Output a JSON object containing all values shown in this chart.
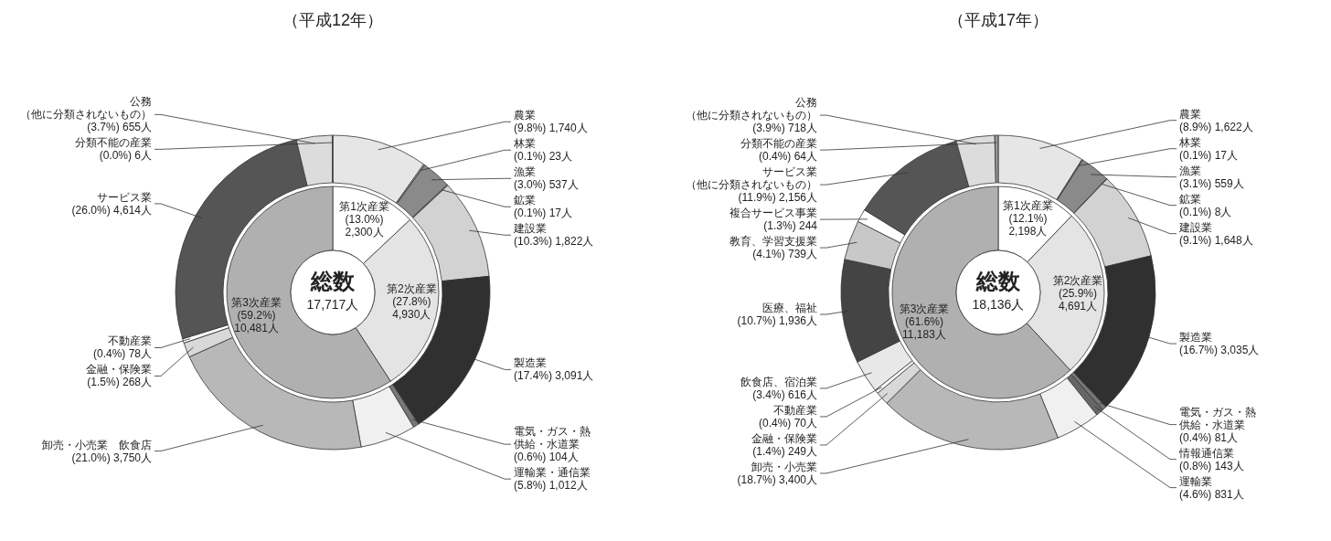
{
  "chart_data": [
    {
      "type": "donut",
      "title": "（平成12年）",
      "categories": [
        "農業",
        "林業",
        "漁業",
        "鉱業",
        "建設業",
        "製造業",
        "電気・ガス・熱供給・水道業",
        "運輸業・通信業",
        "卸売・小売業　飲食店",
        "金融・保険業",
        "不動産業",
        "サービス業",
        "公務（他に分類されないもの）",
        "分類不能の産業"
      ],
      "values": [
        1740,
        23,
        537,
        17,
        1822,
        3091,
        104,
        1012,
        3750,
        268,
        78,
        4614,
        655,
        6
      ],
      "value_labels": [
        "(9.8%) 1,740人",
        "(0.1%) 23人",
        "(3.0%) 537人",
        "(0.1%) 17人",
        "(10.3%) 1,822人",
        "(17.4%) 3,091人",
        "(0.6%) 104人",
        "(5.8%) 1,012人",
        "(21.0%) 3,750人",
        "(1.5%) 268人",
        "(0.4%) 78人",
        "(26.0%) 4,614人",
        "(3.7%) 655人",
        "(0.0%) 6人"
      ],
      "colors": [
        "#e6e6e6",
        "#d0d0d0",
        "#8a8a8a",
        "#aaaaaa",
        "#d2d2d2",
        "#303030",
        "#777777",
        "#f0f0f0",
        "#b8b8b8",
        "#d8d8d8",
        "#ffffff",
        "#555555",
        "#dcdcdc",
        "#999999"
      ]
    },
    {
      "type": "donut",
      "categories": [
        "第1次産業",
        "第2次産業",
        "第3次産業"
      ],
      "values": [
        2300,
        4930,
        10481
      ],
      "value_labels": [
        "(13.0%) 2,300人",
        "(27.8%) 4,930人",
        "(59.2%) 10,481人"
      ],
      "colors": [
        "#ffffff",
        "#e4e4e4",
        "#b0b0b0"
      ],
      "annotations": [
        "総数",
        "17,717人"
      ]
    },
    {
      "type": "donut",
      "title": "（平成17年）",
      "categories": [
        "農業",
        "林業",
        "漁業",
        "鉱業",
        "建設業",
        "製造業",
        "電気・ガス・熱供給・水道業",
        "情報通信業",
        "運輸業",
        "卸売・小売業",
        "金融・保険業",
        "不動産業",
        "飲食店、宿泊業",
        "医療、福祉",
        "教育、学習支援業",
        "複合サービス事業",
        "サービス業（他に分類されないもの）",
        "公務（他に分類されないもの）",
        "分類不能の産業"
      ],
      "values": [
        1622,
        17,
        559,
        8,
        1648,
        3035,
        81,
        143,
        831,
        3400,
        249,
        70,
        616,
        1936,
        739,
        244,
        2156,
        718,
        64
      ],
      "value_labels": [
        "(8.9%) 1,622人",
        "(0.1%) 17人",
        "(3.1%) 559人",
        "(0.1%) 8人",
        "(9.1%) 1,648人",
        "(16.7%) 3,035人",
        "(0.4%) 81人",
        "(0.8%) 143人",
        "(4.6%) 831人",
        "(18.7%) 3,400人",
        "(1.4%) 249人",
        "(0.4%) 70人",
        "(3.4%) 616人",
        "(10.7%) 1,936人",
        "(4.1%) 739人",
        "(1.3%) 244",
        "(11.9%) 2,156人",
        "(3.9%) 718人",
        "(0.4%) 64人"
      ],
      "colors": [
        "#e6e6e6",
        "#d0d0d0",
        "#8a8a8a",
        "#aaaaaa",
        "#d2d2d2",
        "#303030",
        "#777777",
        "#666666",
        "#f0f0f0",
        "#b8b8b8",
        "#d8d8d8",
        "#ffffff",
        "#e8e8e8",
        "#444444",
        "#c8c8c8",
        "#ffffff",
        "#555555",
        "#dcdcdc",
        "#999999"
      ]
    },
    {
      "type": "donut",
      "categories": [
        "第1次産業",
        "第2次産業",
        "第3次産業"
      ],
      "values": [
        2198,
        4691,
        11183
      ],
      "value_labels": [
        "(12.1%) 2,198人",
        "(25.9%) 4,691人",
        "(61.6%) 11,183人"
      ],
      "colors": [
        "#ffffff",
        "#e4e4e4",
        "#b0b0b0"
      ],
      "annotations": [
        "総数",
        "18,136人"
      ]
    }
  ]
}
